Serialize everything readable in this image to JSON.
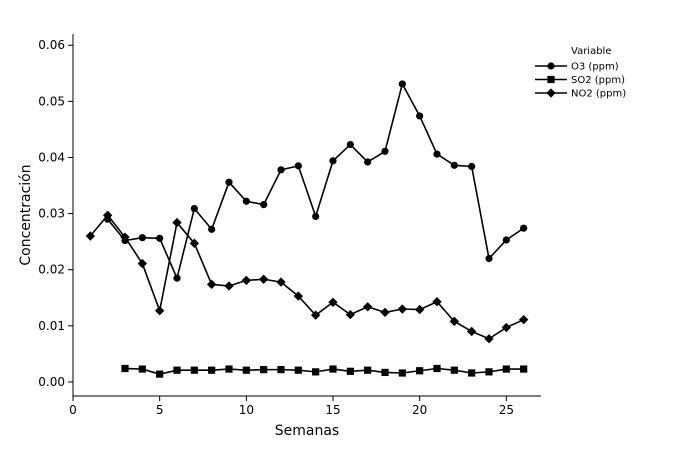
{
  "chart_data": {
    "type": "line",
    "xlabel": "Semanas",
    "ylabel": "Concentración",
    "xlim": [
      0,
      27
    ],
    "ylim": [
      -0.0025,
      0.062
    ],
    "xticks": [
      0,
      5,
      10,
      15,
      20,
      25
    ],
    "xtick_labels": [
      "0",
      "5",
      "10",
      "15",
      "20",
      "25"
    ],
    "yticks": [
      0.0,
      0.01,
      0.02,
      0.03,
      0.04,
      0.05,
      0.06
    ],
    "ytick_labels": [
      "0.00",
      "0.01",
      "0.02",
      "0.03",
      "0.04",
      "0.05",
      "0.06"
    ],
    "legend_title": "Variable",
    "legend_position": "top-right",
    "grid": false,
    "series": [
      {
        "name": "O3 (ppm)",
        "marker": "circle",
        "color": "#000000",
        "x": [
          2,
          3,
          4,
          5,
          6,
          7,
          8,
          9,
          10,
          11,
          12,
          13,
          14,
          15,
          16,
          17,
          18,
          19,
          20,
          21,
          22,
          23,
          24,
          25,
          26
        ],
        "values": [
          0.029,
          0.0252,
          0.0257,
          0.0256,
          0.0185,
          0.0309,
          0.0272,
          0.0356,
          0.0322,
          0.0316,
          0.0378,
          0.0385,
          0.0295,
          0.0394,
          0.0423,
          0.0392,
          0.0411,
          0.0531,
          0.0474,
          0.0406,
          0.0386,
          0.0384,
          0.022,
          0.0253,
          0.0274
        ]
      },
      {
        "name": "SO2 (ppm)",
        "marker": "square",
        "color": "#000000",
        "x": [
          3,
          4,
          5,
          6,
          7,
          8,
          9,
          10,
          11,
          12,
          13,
          14,
          15,
          16,
          17,
          18,
          19,
          20,
          21,
          22,
          23,
          24,
          25,
          26
        ],
        "values": [
          0.0024,
          0.0023,
          0.0014,
          0.0021,
          0.0021,
          0.0021,
          0.0023,
          0.0021,
          0.0022,
          0.0022,
          0.0021,
          0.0018,
          0.0023,
          0.0019,
          0.0021,
          0.0017,
          0.0016,
          0.002,
          0.0024,
          0.0021,
          0.0016,
          0.0018,
          0.0023,
          0.0023
        ]
      },
      {
        "name": "NO2 (ppm)",
        "marker": "diamond",
        "color": "#000000",
        "x": [
          1,
          2,
          3,
          4,
          5,
          6,
          7,
          8,
          9,
          10,
          11,
          12,
          13,
          14,
          15,
          16,
          17,
          18,
          19,
          20,
          21,
          22,
          23,
          24,
          25,
          26
        ],
        "values": [
          0.026,
          0.0297,
          0.0258,
          0.0211,
          0.0127,
          0.0284,
          0.0247,
          0.0174,
          0.0171,
          0.0181,
          0.0183,
          0.0178,
          0.0153,
          0.0119,
          0.0142,
          0.012,
          0.0134,
          0.0124,
          0.013,
          0.0129,
          0.0143,
          0.0108,
          0.009,
          0.0077,
          0.0097,
          0.0111
        ]
      }
    ]
  }
}
